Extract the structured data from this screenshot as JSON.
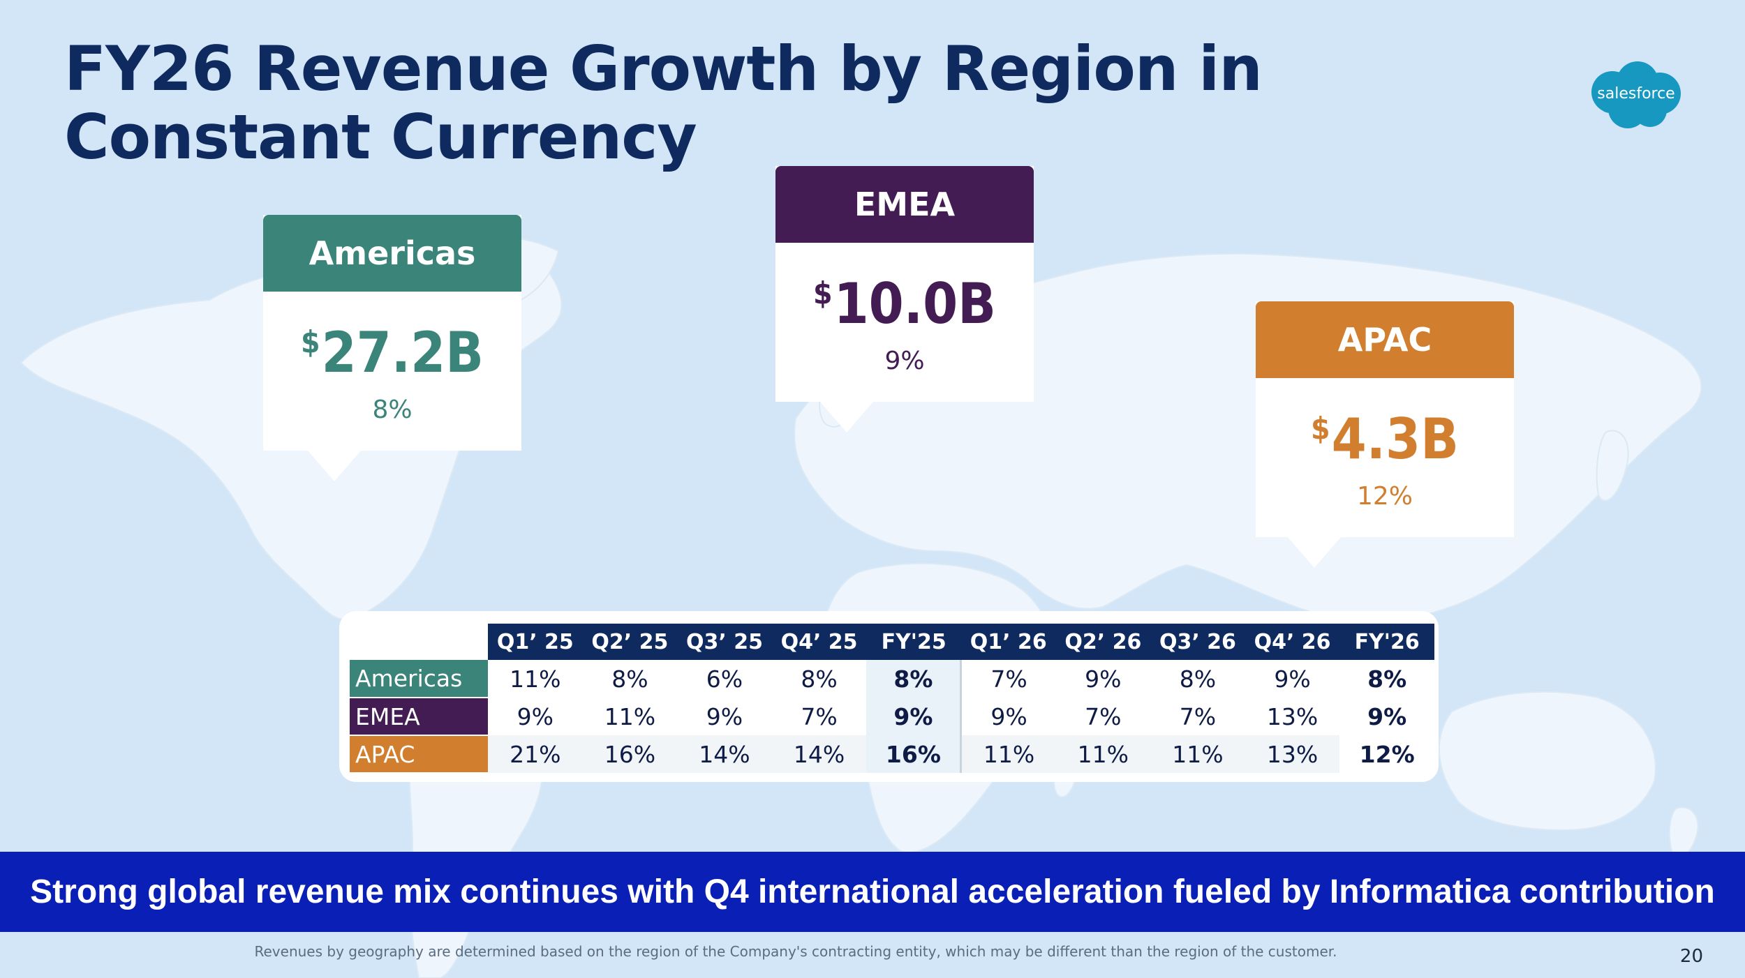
{
  "slide": {
    "title": "FY26 Revenue Growth by Region in Constant Currency",
    "page_number": "20"
  },
  "logo": {
    "text": "salesforce",
    "color": "#1798c1"
  },
  "regions": [
    {
      "name": "Americas",
      "currency": "$",
      "amount": "27.2B",
      "growth": "8%",
      "color": "#3b847a"
    },
    {
      "name": "EMEA",
      "currency": "$",
      "amount": "10.0B",
      "growth": "9%",
      "color": "#431c53"
    },
    {
      "name": "APAC",
      "currency": "$",
      "amount": "4.3B",
      "growth": "12%",
      "color": "#d17f2e"
    }
  ],
  "table": {
    "columns": [
      "Q1’ 25",
      "Q2’ 25",
      "Q3’ 25",
      "Q4’ 25",
      "FY'25",
      "Q1’ 26",
      "Q2’ 26",
      "Q3’ 26",
      "Q4’ 26",
      "FY'26"
    ],
    "rows": [
      {
        "label": "Americas",
        "values": [
          "11%",
          "8%",
          "6%",
          "8%",
          "8%",
          "7%",
          "9%",
          "8%",
          "9%",
          "8%"
        ]
      },
      {
        "label": "EMEA",
        "values": [
          "9%",
          "11%",
          "9%",
          "7%",
          "9%",
          "9%",
          "7%",
          "7%",
          "13%",
          "9%"
        ]
      },
      {
        "label": "APAC",
        "values": [
          "21%",
          "16%",
          "14%",
          "14%",
          "16%",
          "11%",
          "11%",
          "11%",
          "13%",
          "12%"
        ]
      }
    ]
  },
  "banner": {
    "text": "Strong global revenue mix continues with Q4 international acceleration fueled by Informatica contribution"
  },
  "footnote": {
    "text": "Revenues by geography are determined based on the region of the Company's contracting entity, which may be different than the region of the customer."
  }
}
